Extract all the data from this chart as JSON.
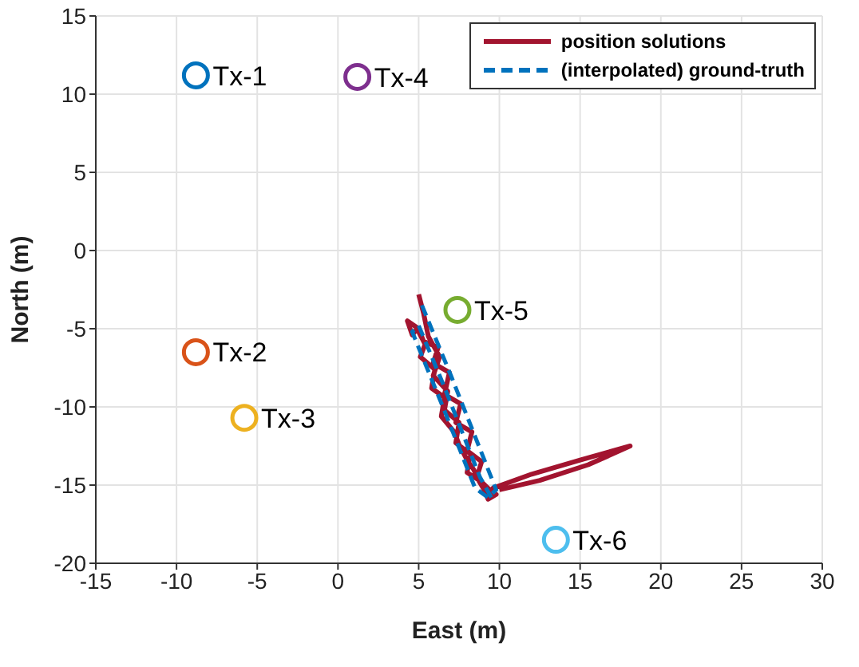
{
  "chart_data": {
    "type": "scatter",
    "xlabel": "East (m)",
    "ylabel": "North (m)",
    "xlim": [
      -15,
      30
    ],
    "ylim": [
      -20,
      15
    ],
    "xticks": [
      -15,
      -10,
      -5,
      0,
      5,
      10,
      15,
      20,
      25,
      30
    ],
    "yticks": [
      -20,
      -15,
      -10,
      -5,
      0,
      5,
      10,
      15
    ],
    "grid": true,
    "legend": "top right",
    "series": [
      {
        "name": "Tx-1",
        "color": "#0072bd",
        "marker": "circle",
        "x": [
          -8.8
        ],
        "values": [
          11.2
        ]
      },
      {
        "name": "Tx-2",
        "color": "#d95319",
        "marker": "circle",
        "x": [
          -8.8
        ],
        "values": [
          -6.5
        ]
      },
      {
        "name": "Tx-3",
        "color": "#edb120",
        "marker": "circle",
        "x": [
          -5.8
        ],
        "values": [
          -10.7
        ]
      },
      {
        "name": "Tx-4",
        "color": "#7e2f8e",
        "marker": "circle",
        "x": [
          1.2
        ],
        "values": [
          11.1
        ]
      },
      {
        "name": "Tx-5",
        "color": "#77ac30",
        "marker": "circle",
        "x": [
          7.4
        ],
        "values": [
          -3.8
        ]
      },
      {
        "name": "Tx-6",
        "color": "#4dbeee",
        "marker": "circle",
        "x": [
          13.5
        ],
        "values": [
          -18.5
        ]
      },
      {
        "type": "line",
        "name": "position solutions",
        "color": "#a2142f",
        "marker": "none",
        "line_style": "solid",
        "x": [
          5.0,
          5.3,
          5.6,
          6.3,
          5.9,
          6.8,
          6.6,
          7.5,
          7.3,
          8.2,
          8.0,
          8.9,
          9.4,
          9.8,
          9.3,
          9.0,
          8.6,
          8.9,
          8.0,
          8.3,
          7.3,
          7.6,
          6.6,
          6.9,
          5.9,
          6.2,
          5.3,
          5.0,
          4.3,
          4.6,
          4.9,
          5.4,
          5.1,
          6.0,
          5.8,
          6.6,
          6.4,
          7.2,
          7.5,
          8.0,
          8.4,
          8.8,
          9.2,
          9.6,
          12,
          15,
          18.1,
          15.5,
          12.5,
          10.0
        ],
        "values": [
          -2.8,
          -4.0,
          -5.5,
          -6.8,
          -8.0,
          -9.0,
          -10.2,
          -11.0,
          -12.3,
          -13.0,
          -14.2,
          -14.8,
          -15.3,
          -15.6,
          -15.9,
          -15.2,
          -14.5,
          -13.5,
          -12.8,
          -11.6,
          -11.0,
          -9.8,
          -9.2,
          -7.8,
          -7.2,
          -6.2,
          -5.8,
          -5.0,
          -4.5,
          -5.4,
          -5.0,
          -6.0,
          -6.8,
          -7.6,
          -8.8,
          -9.4,
          -10.6,
          -11.6,
          -12.4,
          -13.4,
          -14.0,
          -14.8,
          -15.6,
          -15.2,
          -14.3,
          -13.4,
          -12.5,
          -13.7,
          -14.7,
          -15.3
        ]
      },
      {
        "type": "line",
        "name": "(interpolated) ground-truth",
        "color": "#0072bd",
        "marker": "none",
        "line_style": "dashed",
        "x": [
          5.2,
          7.0,
          9.8,
          9.3,
          8.5,
          6.5,
          4.6,
          5.0,
          6.5,
          8.8,
          9.5
        ],
        "values": [
          -3.5,
          -8.0,
          -15.3,
          -15.8,
          -15.2,
          -10.0,
          -5.2,
          -4.8,
          -8.5,
          -14.5,
          -15.8
        ]
      }
    ]
  }
}
